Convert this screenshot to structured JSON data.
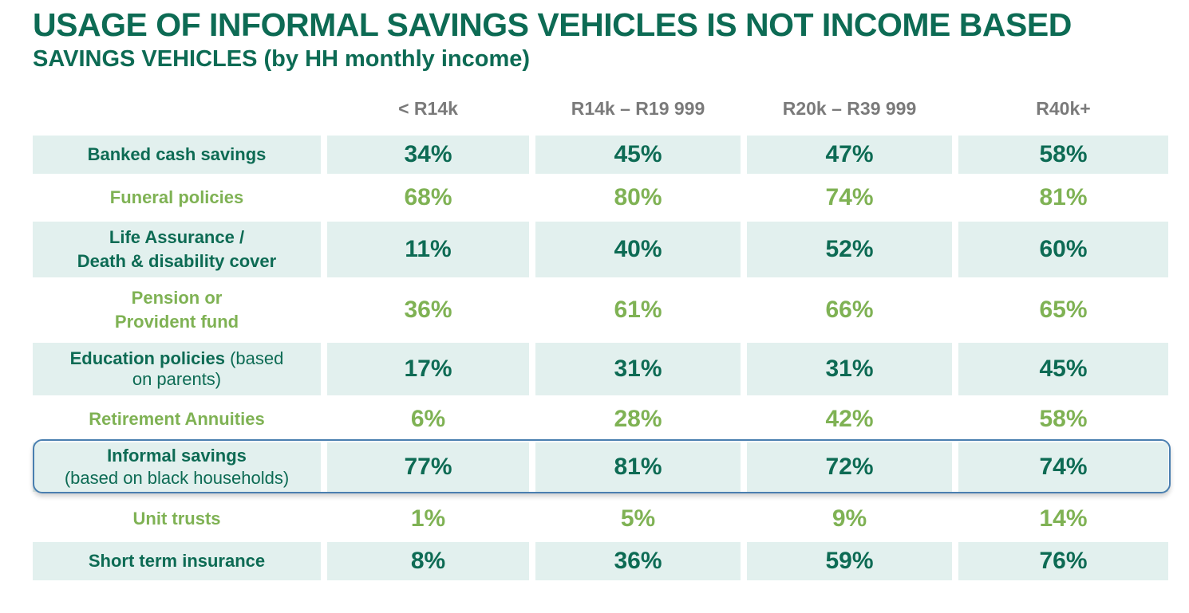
{
  "title": "USAGE OF INFORMAL SAVINGS VEHICLES IS NOT INCOME BASED",
  "subtitle": "SAVINGS VEHICLES (by HH monthly income)",
  "colors": {
    "dark_green": "#0d6b54",
    "light_green": "#7fb254",
    "header_grey": "#7a7a7a",
    "row_shade": "#e2f0ee",
    "highlight_border": "#4a7fb0"
  },
  "chart_data": {
    "type": "table",
    "title": "USAGE OF INFORMAL SAVINGS VEHICLES IS NOT INCOME BASED",
    "subtitle": "SAVINGS VEHICLES (by HH monthly income)",
    "columns": [
      "< R14k",
      "R14k – R19 999",
      "R20k – R39 999",
      "R40k+"
    ],
    "unit": "%",
    "rows": [
      {
        "label": "Banked cash savings",
        "note": "",
        "style": "dark",
        "shaded": true,
        "highlighted": false,
        "values": [
          34,
          45,
          47,
          58
        ],
        "display": [
          "34%",
          "45%",
          "47%",
          "58%"
        ]
      },
      {
        "label": "Funeral policies",
        "note": "",
        "style": "light",
        "shaded": false,
        "highlighted": false,
        "values": [
          68,
          80,
          74,
          81
        ],
        "display": [
          "68%",
          "80%",
          "74%",
          "81%"
        ]
      },
      {
        "label": "Life Assurance /",
        "label2": "Death & disability cover",
        "note": "",
        "style": "dark",
        "shaded": true,
        "highlighted": false,
        "values": [
          11,
          40,
          52,
          60
        ],
        "display": [
          "11%",
          "40%",
          "52%",
          "60%"
        ]
      },
      {
        "label": "Pension or",
        "label2": "Provident fund",
        "note": "",
        "style": "light",
        "shaded": false,
        "highlighted": false,
        "values": [
          36,
          61,
          66,
          65
        ],
        "display": [
          "36%",
          "61%",
          "66%",
          "65%"
        ]
      },
      {
        "label": "Education policies",
        "note": " (based",
        "note2": "on parents)",
        "style": "dark",
        "shaded": true,
        "highlighted": false,
        "values": [
          17,
          31,
          31,
          45
        ],
        "display": [
          "17%",
          "31%",
          "31%",
          "45%"
        ]
      },
      {
        "label": "Retirement Annuities",
        "note": "",
        "style": "light",
        "shaded": false,
        "highlighted": false,
        "values": [
          6,
          28,
          42,
          58
        ],
        "display": [
          "6%",
          "28%",
          "42%",
          "58%"
        ]
      },
      {
        "label": "Informal savings",
        "note2": "(based on black households)",
        "style": "dark",
        "shaded": true,
        "highlighted": true,
        "values": [
          77,
          81,
          72,
          74
        ],
        "display": [
          "77%",
          "81%",
          "72%",
          "74%"
        ]
      },
      {
        "label": "Unit trusts",
        "note": "",
        "style": "light",
        "shaded": false,
        "highlighted": false,
        "values": [
          1,
          5,
          9,
          14
        ],
        "display": [
          "1%",
          "5%",
          "9%",
          "14%"
        ]
      },
      {
        "label": "Short term insurance",
        "note": "",
        "style": "dark",
        "shaded": true,
        "highlighted": false,
        "values": [
          8,
          36,
          59,
          76
        ],
        "display": [
          "8%",
          "36%",
          "59%",
          "76%"
        ]
      }
    ]
  }
}
